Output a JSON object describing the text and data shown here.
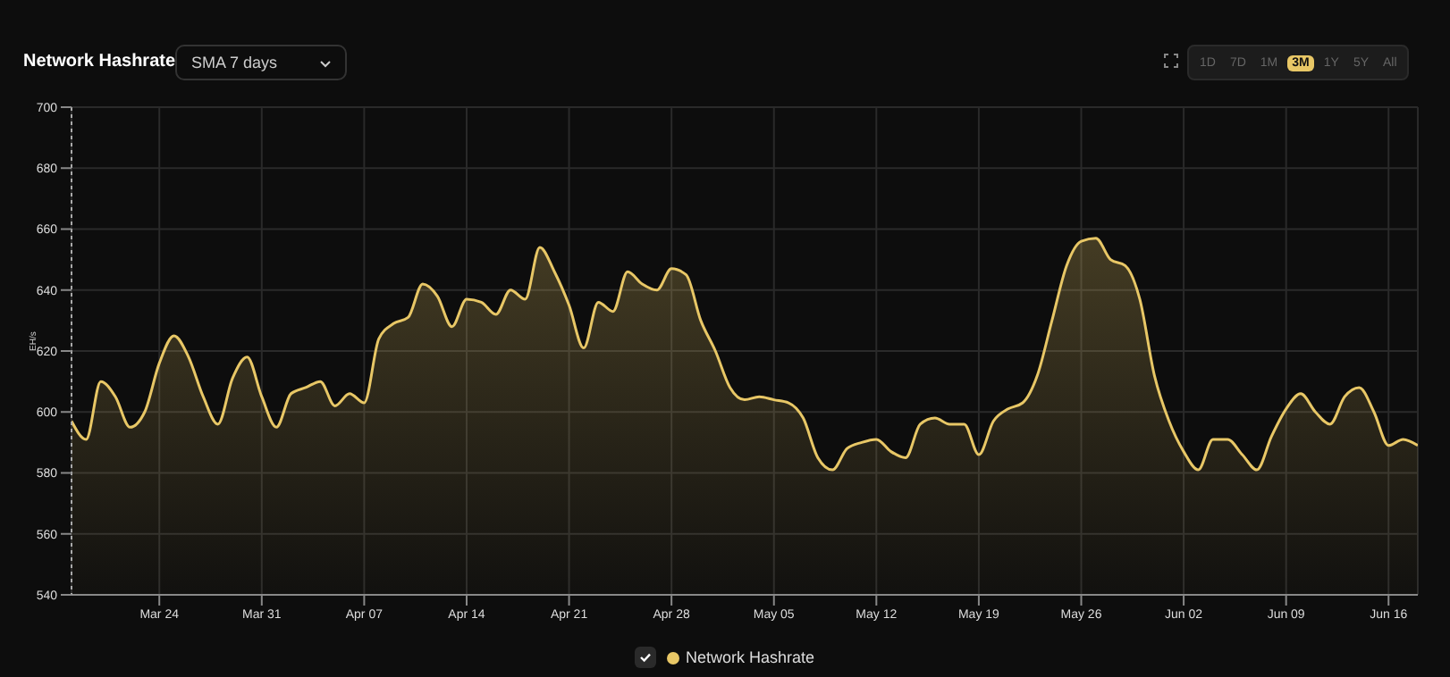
{
  "chart_data": {
    "type": "area",
    "title": "Network Hashrate",
    "ylabel": "EH/s",
    "annotations": [
      "SMA 7 days",
      "1D",
      "7D",
      "1M",
      "3M",
      "1Y",
      "5Y",
      "All"
    ],
    "x": [
      "--03-18",
      "--03-19",
      "--03-20",
      "--03-21",
      "--03-22",
      "--03-23",
      "--03-24",
      "--03-25",
      "--03-26",
      "--03-27",
      "--03-28",
      "--03-29",
      "--03-30",
      "--03-31",
      "--04-01",
      "--04-02",
      "--04-03",
      "--04-04",
      "--04-05",
      "--04-06",
      "--04-07",
      "--04-08",
      "--04-09",
      "--04-10",
      "--04-11",
      "--04-12",
      "--04-13",
      "--04-14",
      "--04-15",
      "--04-16",
      "--04-17",
      "--04-18",
      "--04-19",
      "--04-20",
      "--04-21",
      "--04-22",
      "--04-23",
      "--04-24",
      "--04-25",
      "--04-26",
      "--04-27",
      "--04-28",
      "--04-29",
      "--04-30",
      "--05-01",
      "--05-02",
      "--05-03",
      "--05-04",
      "--05-05",
      "--05-06",
      "--05-07",
      "--05-08",
      "--05-09",
      "--05-10",
      "--05-11",
      "--05-12",
      "--05-13",
      "--05-14",
      "--05-15",
      "--05-16",
      "--05-17",
      "--05-18",
      "--05-19",
      "--05-20",
      "--05-21",
      "--05-22",
      "--05-23",
      "--05-24",
      "--05-25",
      "--05-26",
      "--05-27",
      "--05-28",
      "--05-29",
      "--05-30",
      "--05-31",
      "--06-01",
      "--06-02",
      "--06-03",
      "--06-04",
      "--06-05",
      "--06-06",
      "--06-07",
      "--06-08",
      "--06-09",
      "--06-10",
      "--06-11",
      "--06-12",
      "--06-13",
      "--06-14",
      "--06-15",
      "--06-16",
      "--06-17",
      "--06-18"
    ],
    "series": [
      {
        "name": "Network Hashrate",
        "color": "#e8c766",
        "values": [
          597,
          591,
          610,
          605,
          595,
          600,
          616,
          625,
          618,
          605,
          596,
          611,
          618,
          605,
          595,
          606,
          608,
          610,
          602,
          606,
          603,
          624,
          629,
          631,
          642,
          638,
          628,
          637,
          636,
          632,
          640,
          637,
          654,
          646,
          635,
          621,
          636,
          633,
          646,
          642,
          640,
          647,
          645,
          630,
          620,
          608,
          604,
          605,
          604,
          603,
          598,
          585,
          581,
          588,
          590,
          591,
          587,
          585,
          596,
          598,
          596,
          596,
          586,
          597,
          601,
          603,
          612,
          630,
          648,
          656,
          657,
          650,
          648,
          637,
          612,
          597,
          587,
          581,
          591,
          591,
          586,
          581,
          592,
          601,
          606,
          600,
          596,
          605,
          608,
          600,
          589,
          591,
          589
        ]
      }
    ],
    "xlim": [
      "--03-18",
      "--06-18"
    ],
    "xticks": [
      {
        "value": "--03-24",
        "label": "Mar 24"
      },
      {
        "value": "--03-31",
        "label": "Mar 31"
      },
      {
        "value": "--04-07",
        "label": "Apr 07"
      },
      {
        "value": "--04-14",
        "label": "Apr 14"
      },
      {
        "value": "--04-21",
        "label": "Apr 21"
      },
      {
        "value": "--04-28",
        "label": "Apr 28"
      },
      {
        "value": "--05-05",
        "label": "May 05"
      },
      {
        "value": "--05-12",
        "label": "May 12"
      },
      {
        "value": "--05-19",
        "label": "May 19"
      },
      {
        "value": "--05-26",
        "label": "May 26"
      },
      {
        "value": "--06-02",
        "label": "Jun 02"
      },
      {
        "value": "--06-09",
        "label": "Jun 09"
      },
      {
        "value": "--06-16",
        "label": "Jun 16"
      }
    ],
    "ylim": [
      540,
      700
    ],
    "yticks": [
      540,
      560,
      580,
      600,
      620,
      640,
      660,
      680,
      700
    ],
    "grid": true,
    "legend": "bottom",
    "marker": "none",
    "line_style": "solid"
  }
}
